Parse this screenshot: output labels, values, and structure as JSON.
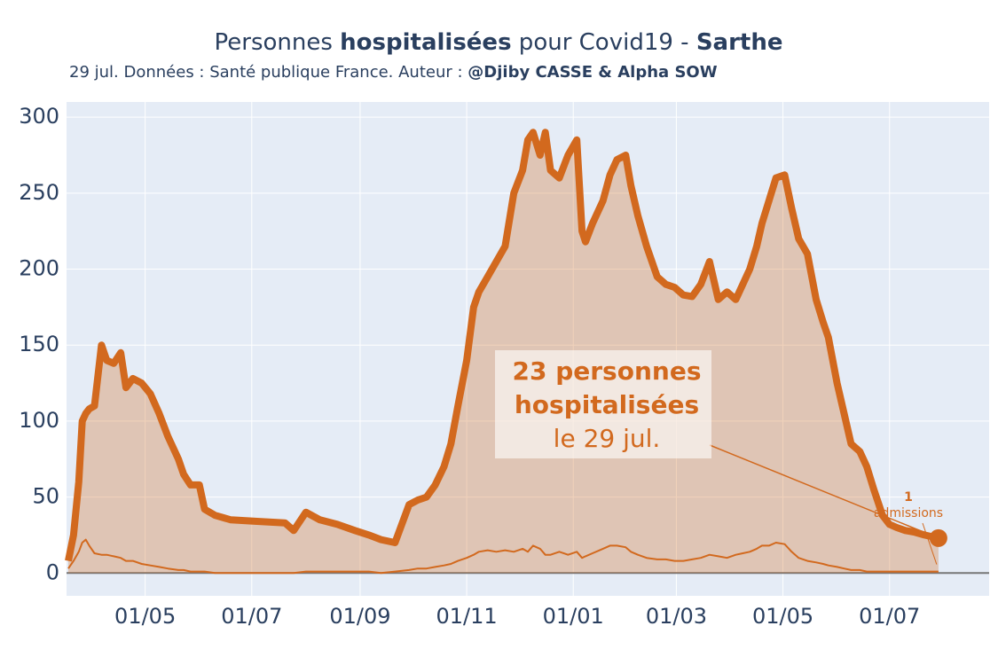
{
  "chart_data": {
    "type": "line",
    "title": [
      {
        "text": "Personnes ",
        "bold": false
      },
      {
        "text": "hospitalisées",
        "bold": true
      },
      {
        "text": " pour Covid19 - ",
        "bold": false
      },
      {
        "text": "Sarthe",
        "bold": true
      }
    ],
    "subtitle": [
      {
        "text": "29 jul. Données : Santé publique France. Auteur : ",
        "bold": false
      },
      {
        "text": "@Djiby CASSE & Alpha SOW",
        "bold": true
      }
    ],
    "x": [
      0,
      3,
      6,
      8,
      10,
      12,
      15,
      19,
      22,
      26,
      30,
      33,
      37,
      42,
      47,
      52,
      57,
      63,
      66,
      70,
      75,
      78,
      84,
      93,
      108,
      124,
      129,
      136,
      144,
      154,
      164,
      172,
      179,
      187,
      195,
      200,
      205,
      210,
      215,
      219,
      223,
      228,
      232,
      235,
      240,
      245,
      250,
      255,
      260,
      263,
      266,
      270,
      273,
      276,
      281,
      286,
      291,
      294,
      296,
      300,
      306,
      310,
      314,
      319,
      322,
      326,
      331,
      337,
      342,
      347,
      352,
      357,
      362,
      367,
      372,
      377,
      382,
      386,
      390,
      394,
      397,
      401,
      405,
      410,
      414,
      418,
      423,
      428,
      432,
      435,
      440,
      444,
      448,
      453,
      457,
      461,
      466,
      470,
      474,
      479,
      484,
      490,
      498
    ],
    "xlim": [
      -1,
      527
    ],
    "xticks": [
      {
        "value": 44,
        "label": "01/05"
      },
      {
        "value": 105,
        "label": "01/07"
      },
      {
        "value": 167,
        "label": "01/09"
      },
      {
        "value": 228,
        "label": "01/11"
      },
      {
        "value": 289,
        "label": "01/01"
      },
      {
        "value": 348,
        "label": "01/03"
      },
      {
        "value": 409,
        "label": "01/05"
      },
      {
        "value": 470,
        "label": "01/07"
      }
    ],
    "ylim": [
      -15,
      310
    ],
    "yticks": [
      0,
      50,
      100,
      150,
      200,
      250,
      300
    ],
    "grid": true,
    "series": [
      {
        "color": "#d2691e",
        "fill": true,
        "width": 8,
        "values": [
          8,
          25,
          60,
          100,
          105,
          108,
          110,
          150,
          140,
          138,
          145,
          122,
          128,
          125,
          118,
          105,
          90,
          75,
          65,
          58,
          58,
          42,
          38,
          35,
          34,
          33,
          28,
          40,
          35,
          32,
          28,
          25,
          22,
          20,
          45,
          48,
          50,
          58,
          70,
          85,
          110,
          140,
          175,
          185,
          195,
          205,
          215,
          250,
          265,
          285,
          290,
          275,
          290,
          265,
          260,
          275,
          285,
          225,
          218,
          230,
          245,
          262,
          272,
          275,
          255,
          235,
          215,
          195,
          190,
          188,
          183,
          182,
          190,
          205,
          180,
          185,
          180,
          190,
          200,
          215,
          230,
          245,
          260,
          262,
          240,
          220,
          210,
          180,
          165,
          155,
          125,
          105,
          85,
          80,
          70,
          55,
          38,
          32,
          30,
          28,
          27,
          25,
          23
        ]
      },
      {
        "color": "#d2691e",
        "fill": false,
        "width": 2,
        "values": [
          3,
          8,
          14,
          20,
          22,
          18,
          13,
          12,
          12,
          11,
          10,
          8,
          8,
          6,
          5,
          4,
          3,
          2,
          2,
          1,
          1,
          1,
          0,
          0,
          0,
          0,
          0,
          1,
          1,
          1,
          1,
          1,
          0,
          1,
          2,
          3,
          3,
          4,
          5,
          6,
          8,
          10,
          12,
          14,
          15,
          14,
          15,
          14,
          16,
          14,
          18,
          16,
          12,
          12,
          14,
          12,
          14,
          10,
          11,
          13,
          16,
          18,
          18,
          17,
          14,
          12,
          10,
          9,
          9,
          8,
          8,
          9,
          10,
          12,
          11,
          10,
          12,
          13,
          14,
          16,
          18,
          18,
          20,
          19,
          14,
          10,
          8,
          7,
          6,
          5,
          4,
          3,
          2,
          2,
          1,
          1,
          1,
          1,
          1,
          1,
          1,
          1,
          1
        ]
      }
    ],
    "annotations": [
      {
        "lines": [
          {
            "text": "23 personnes",
            "bold": true
          },
          {
            "text": "hospitalisées",
            "bold": true
          },
          {
            "text": "le 29 jul.",
            "bold": false
          }
        ],
        "x": 498,
        "y": 23
      },
      {
        "lines": [
          {
            "text": "1",
            "bold": true
          },
          {
            "text": "admissions",
            "bold": false
          }
        ],
        "x": 498,
        "y": 1
      }
    ]
  }
}
